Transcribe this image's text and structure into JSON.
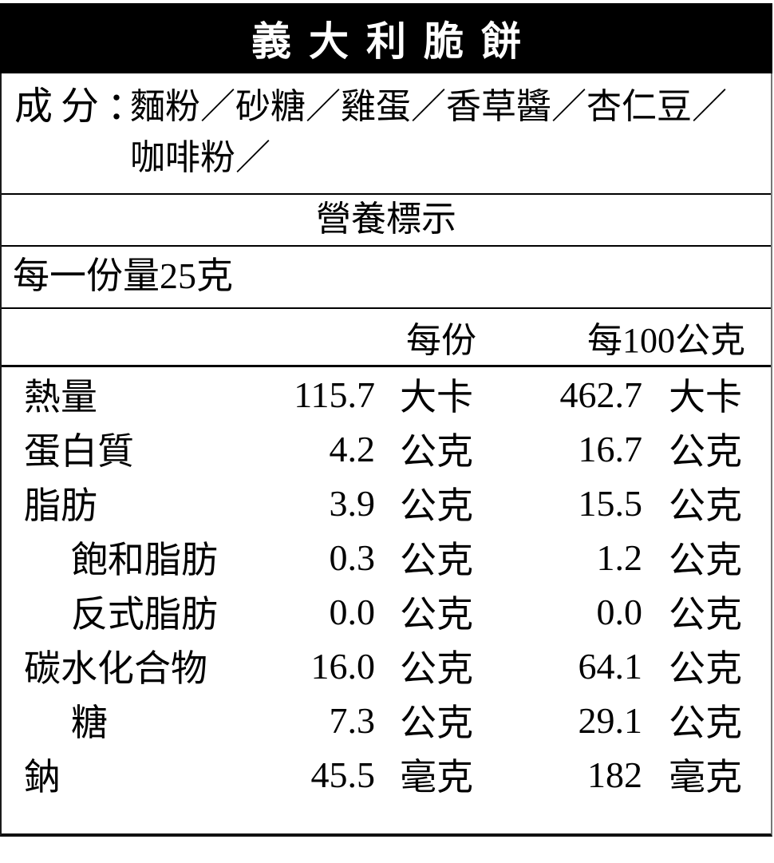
{
  "title": "義大利脆餅",
  "ingredients": {
    "label": "成分：",
    "line1": "麵粉／砂糖／雞蛋／香草醬／杏仁豆／",
    "line2": "咖啡粉／"
  },
  "nutrition": {
    "section_title": "營養標示",
    "serving_size": "每一份量25克",
    "col_per_serving": "每份",
    "col_per_100g": "每100公克",
    "rows": [
      {
        "label": "熱量",
        "indent": false,
        "v1": "115.7",
        "u1": "大卡",
        "v2": "462.7",
        "u2": "大卡"
      },
      {
        "label": "蛋白質",
        "indent": false,
        "v1": "4.2",
        "u1": "公克",
        "v2": "16.7",
        "u2": "公克"
      },
      {
        "label": "脂肪",
        "indent": false,
        "v1": "3.9",
        "u1": "公克",
        "v2": "15.5",
        "u2": "公克"
      },
      {
        "label": "飽和脂肪",
        "indent": true,
        "v1": "0.3",
        "u1": "公克",
        "v2": "1.2",
        "u2": "公克"
      },
      {
        "label": "反式脂肪",
        "indent": true,
        "v1": "0.0",
        "u1": "公克",
        "v2": "0.0",
        "u2": "公克"
      },
      {
        "label": "碳水化合物",
        "indent": false,
        "v1": "16.0",
        "u1": "公克",
        "v2": "64.1",
        "u2": "公克"
      },
      {
        "label": "糖",
        "indent": true,
        "v1": "7.3",
        "u1": "公克",
        "v2": "29.1",
        "u2": "公克"
      },
      {
        "label": "鈉",
        "indent": false,
        "v1": "45.5",
        "u1": "毫克",
        "v2": "182",
        "u2": "毫克"
      }
    ]
  },
  "colors": {
    "header_bg": "#000000",
    "header_text": "#ffffff",
    "body_bg": "#ffffff",
    "text": "#000000",
    "rule": "#000000",
    "right_border": "#777777"
  }
}
